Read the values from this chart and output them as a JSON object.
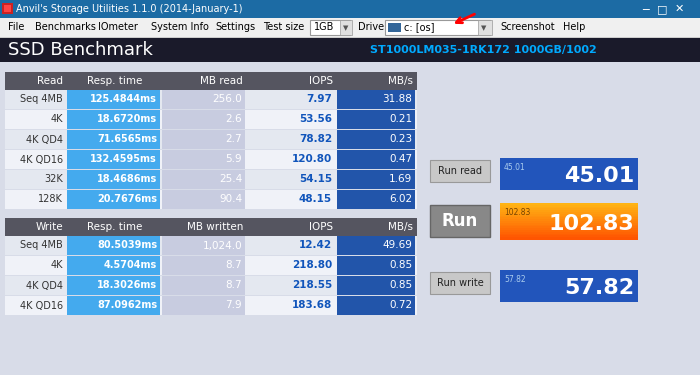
{
  "title_bar": "Anvil's Storage Utilities 1.1.0 (2014-January-1)",
  "section_title": "SSD Benchmark",
  "device_label": "ST1000LM035-1RK172 1000GB/1002",
  "read_headers": [
    "Read",
    "Resp. time",
    "MB read",
    "IOPS",
    "MB/s"
  ],
  "read_rows": [
    [
      "Seq 4MB",
      "125.4844ms",
      "256.0",
      "7.97",
      "31.88"
    ],
    [
      "4K",
      "18.6720ms",
      "2.6",
      "53.56",
      "0.21"
    ],
    [
      "4K QD4",
      "71.6565ms",
      "2.7",
      "78.82",
      "0.23"
    ],
    [
      "4K QD16",
      "132.4595ms",
      "5.9",
      "120.80",
      "0.47"
    ],
    [
      "32K",
      "18.4686ms",
      "25.4",
      "54.15",
      "1.69"
    ],
    [
      "128K",
      "20.7676ms",
      "90.4",
      "48.15",
      "6.02"
    ]
  ],
  "write_headers": [
    "Write",
    "Resp. time",
    "MB written",
    "IOPS",
    "MB/s"
  ],
  "write_rows": [
    [
      "Seq 4MB",
      "80.5039ms",
      "1,024.0",
      "12.42",
      "49.69"
    ],
    [
      "4K",
      "4.5704ms",
      "8.7",
      "218.80",
      "0.85"
    ],
    [
      "4K QD4",
      "18.3026ms",
      "8.7",
      "218.55",
      "0.85"
    ],
    [
      "4K QD16",
      "87.0962ms",
      "7.9",
      "183.68",
      "0.72"
    ]
  ],
  "score_read_label": "45.01",
  "score_read_value": "45.01",
  "score_total_label": "102.83",
  "score_total_value": "102.83",
  "score_write_label": "57.82",
  "score_write_value": "57.82"
}
